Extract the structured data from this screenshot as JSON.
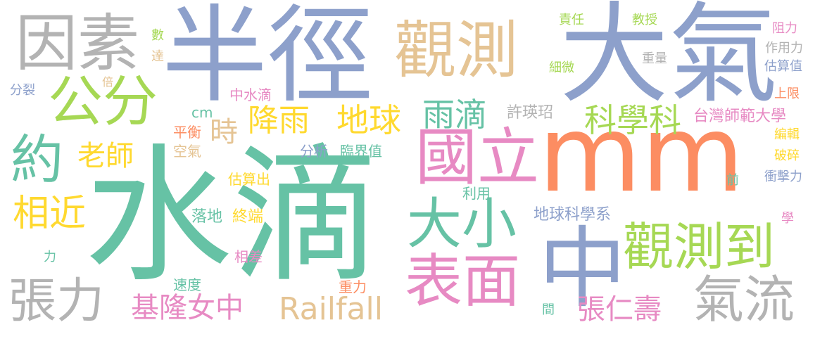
{
  "words": [
    {
      "text": "水滴",
      "color": "#66c2a5"
    },
    {
      "text": "mm",
      "color": "#fc8d62"
    },
    {
      "text": "半徑",
      "color": "#8da0cb"
    },
    {
      "text": "大氣",
      "color": "#8da0cb"
    },
    {
      "text": "因素",
      "color": "#b3b3b3"
    },
    {
      "text": "觀測",
      "color": "#e5c494"
    },
    {
      "text": "公分",
      "color": "#a6d854"
    },
    {
      "text": "國立",
      "color": "#e78ac3"
    },
    {
      "text": "中",
      "color": "#8da0cb"
    },
    {
      "text": "約",
      "color": "#66c2a5"
    },
    {
      "text": "觀測到",
      "color": "#a6d854"
    },
    {
      "text": "表面",
      "color": "#e78ac3"
    },
    {
      "text": "大小",
      "color": "#66c2a5"
    },
    {
      "text": "張力",
      "color": "#b3b3b3"
    },
    {
      "text": "氣流",
      "color": "#b3b3b3"
    },
    {
      "text": "相近",
      "color": "#ffd92f"
    },
    {
      "text": "雨滴",
      "color": "#66c2a5"
    },
    {
      "text": "地球",
      "color": "#ffd92f"
    },
    {
      "text": "降雨",
      "color": "#ffd92f"
    },
    {
      "text": "時",
      "color": "#e5c494"
    },
    {
      "text": "老師",
      "color": "#ffd92f"
    },
    {
      "text": "科學科",
      "color": "#a6d854"
    },
    {
      "text": "基隆女中",
      "color": "#e78ac3"
    },
    {
      "text": "Railfall",
      "color": "#e5c494"
    },
    {
      "text": "張仁壽",
      "color": "#e78ac3"
    },
    {
      "text": "台灣師範大學",
      "color": "#e78ac3"
    },
    {
      "text": "地球科學系",
      "color": "#8da0cb"
    },
    {
      "text": "許瑛玿",
      "color": "#b3b3b3"
    },
    {
      "text": "終端",
      "color": "#ffd92f"
    },
    {
      "text": "落地",
      "color": "#66c2a5"
    },
    {
      "text": "分析",
      "color": "#8da0cb"
    },
    {
      "text": "臨界值",
      "color": "#66c2a5"
    },
    {
      "text": "估算出",
      "color": "#ffd92f"
    },
    {
      "text": "空氣",
      "color": "#e5c494"
    },
    {
      "text": "平衡",
      "color": "#fc8d62"
    },
    {
      "text": "cm",
      "color": "#66c2a5"
    },
    {
      "text": "中水滴",
      "color": "#e78ac3"
    },
    {
      "text": "利用",
      "color": "#66c2a5"
    },
    {
      "text": "速度",
      "color": "#66c2a5"
    },
    {
      "text": "重力",
      "color": "#fc8d62"
    },
    {
      "text": "間",
      "color": "#66c2a5"
    },
    {
      "text": "相差",
      "color": "#e78ac3"
    },
    {
      "text": "力",
      "color": "#66c2a5"
    },
    {
      "text": "倍",
      "color": "#e5c494"
    },
    {
      "text": "分裂",
      "color": "#8da0cb"
    },
    {
      "text": "數",
      "color": "#a6d854"
    },
    {
      "text": "達",
      "color": "#e5c494"
    },
    {
      "text": "責任",
      "color": "#a6d854"
    },
    {
      "text": "教授",
      "color": "#a6d854"
    },
    {
      "text": "細微",
      "color": "#a6d854"
    },
    {
      "text": "重量",
      "color": "#b3b3b3"
    },
    {
      "text": "阻力",
      "color": "#e78ac3"
    },
    {
      "text": "作用力",
      "color": "#b3b3b3"
    },
    {
      "text": "估算值",
      "color": "#8da0cb"
    },
    {
      "text": "上限",
      "color": "#fc8d62"
    },
    {
      "text": "編輯",
      "color": "#ffd92f"
    },
    {
      "text": "破碎",
      "color": "#ffd92f"
    },
    {
      "text": "衝擊力",
      "color": "#8da0cb"
    },
    {
      "text": "前",
      "color": "#66c2a5"
    },
    {
      "text": "學",
      "color": "#e78ac3"
    }
  ]
}
